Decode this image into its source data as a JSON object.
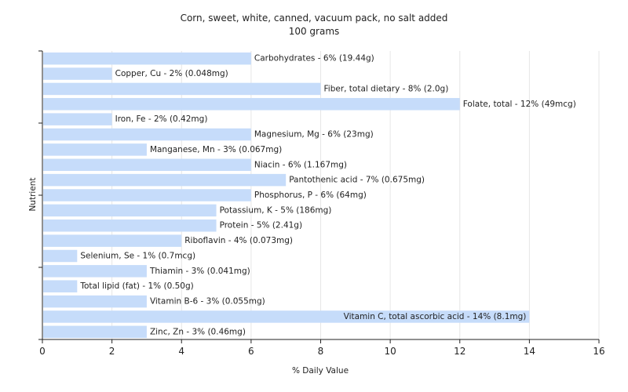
{
  "chart_data": {
    "type": "bar",
    "orientation": "horizontal",
    "title": "Corn, sweet, white, canned, vacuum pack, no salt added",
    "subtitle": "100 grams",
    "xlabel": "% Daily Value",
    "ylabel": "Nutrient",
    "xlim": [
      0,
      16
    ],
    "xticks": [
      0,
      2,
      4,
      6,
      8,
      10,
      12,
      14,
      16
    ],
    "grid": true,
    "bar_color": "#c6dcfa",
    "categories": [
      "Carbohydrates",
      "Copper, Cu",
      "Fiber, total dietary",
      "Folate, total",
      "Iron, Fe",
      "Magnesium, Mg",
      "Manganese, Mn",
      "Niacin",
      "Pantothenic acid",
      "Phosphorus, P",
      "Potassium, K",
      "Protein",
      "Riboflavin",
      "Selenium, Se",
      "Thiamin",
      "Total lipid (fat)",
      "Vitamin B-6",
      "Vitamin C, total ascorbic acid",
      "Zinc, Zn"
    ],
    "values": [
      6,
      2,
      8,
      12,
      2,
      6,
      3,
      6,
      7,
      6,
      5,
      5,
      4,
      1,
      3,
      1,
      3,
      14,
      3
    ],
    "labels": [
      "Carbohydrates - 6% (19.44g)",
      "Copper, Cu - 2% (0.048mg)",
      "Fiber, total dietary - 8% (2.0g)",
      "Folate, total - 12% (49mcg)",
      "Iron, Fe - 2% (0.42mg)",
      "Magnesium, Mg - 6% (23mg)",
      "Manganese, Mn - 3% (0.067mg)",
      "Niacin - 6% (1.167mg)",
      "Pantothenic acid - 7% (0.675mg)",
      "Phosphorus, P - 6% (64mg)",
      "Potassium, K - 5% (186mg)",
      "Protein - 5% (2.41g)",
      "Riboflavin - 4% (0.073mg)",
      "Selenium, Se - 1% (0.7mcg)",
      "Thiamin - 3% (0.041mg)",
      "Total lipid (fat) - 1% (0.50g)",
      "Vitamin B-6 - 3% (0.055mg)",
      "Vitamin C, total ascorbic acid - 14% (8.1mg)",
      "Zinc, Zn - 3% (0.46mg)"
    ]
  }
}
